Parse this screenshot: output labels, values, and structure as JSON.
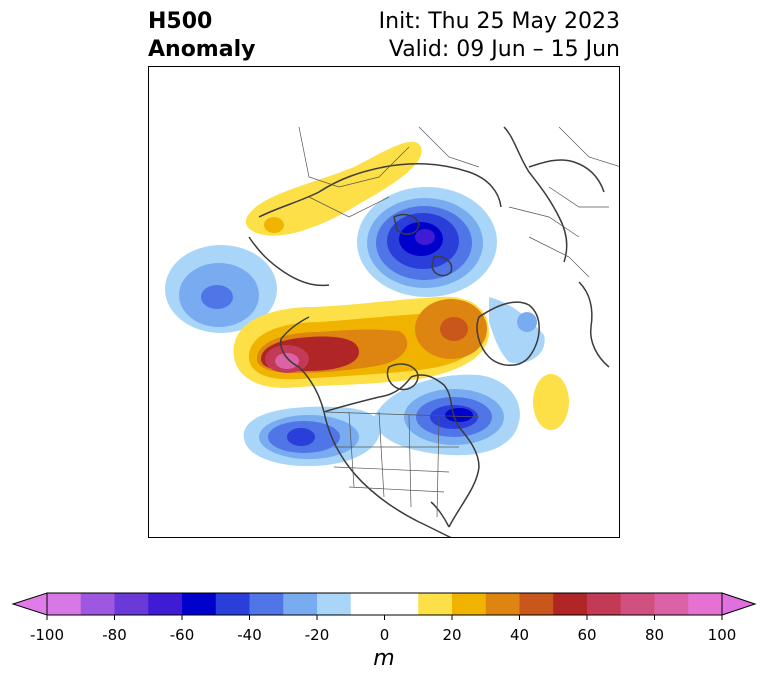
{
  "title": {
    "left_line1": "H500",
    "left_line2": "Anomaly",
    "right_line1": "Init: Thu 25 May 2023",
    "right_line2": "Valid: 09 Jun – 15 Jun"
  },
  "colorbar": {
    "unit": "m",
    "ticks": [
      "-100",
      "-80",
      "-60",
      "-40",
      "-20",
      "0",
      "20",
      "40",
      "60",
      "80",
      "100"
    ],
    "levels": [
      -100,
      -90,
      -80,
      -70,
      -60,
      -50,
      -40,
      -30,
      -20,
      -10,
      10,
      20,
      30,
      40,
      50,
      60,
      70,
      80,
      90,
      100
    ],
    "colors": [
      "#d679e6",
      "#9e57e0",
      "#6a3ad8",
      "#3f1cd4",
      "#0000cc",
      "#2a3fd9",
      "#4f75e6",
      "#79abf0",
      "#a9d6f8",
      "#ffffff",
      "#fde047",
      "#f0b400",
      "#dd8510",
      "#c9561a",
      "#b02525",
      "#c23a55",
      "#d05080",
      "#db62a6",
      "#e572d2"
    ],
    "extend_low_color": "#e07ce8",
    "extend_high_color": "#e070e0"
  },
  "map": {
    "projection": "north-polar-stereographic",
    "field": "500 hPa height anomaly"
  }
}
